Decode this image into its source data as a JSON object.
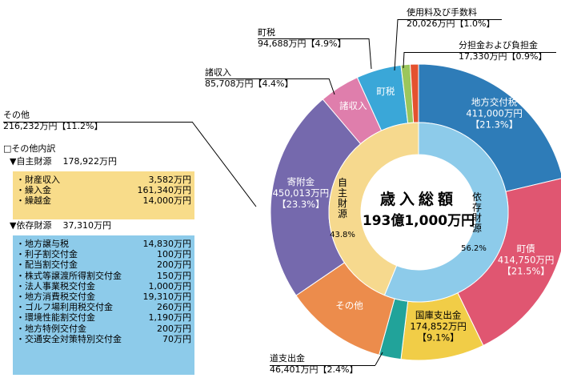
{
  "chart_data": {
    "type": "donut",
    "center_title": "歳入総額",
    "center_total": "193億1,000万円",
    "outer": [
      {
        "name": "地方交付税",
        "amount": "411,000万円",
        "percent": "【21.3%】",
        "value": 21.3,
        "color": "#2e7cb8",
        "label_color": "#ffffff"
      },
      {
        "name": "町債",
        "amount": "414,750万円",
        "percent": "【21.5%】",
        "value": 21.5,
        "color": "#e05671",
        "label_color": "#ffffff"
      },
      {
        "name": "国庫支出金",
        "amount": "174,852万円",
        "percent": "【9.1%】",
        "value": 9.1,
        "color": "#f1cd47",
        "label_color": "#000000"
      },
      {
        "name": "道支出金",
        "amount": "46,401万円",
        "percent": "【2.4%】",
        "value": 2.4,
        "color": "#21a39a",
        "label_color": "#000000"
      },
      {
        "name": "その他",
        "amount": "216,232万円",
        "percent": "【11.2%】",
        "value": 11.2,
        "color": "#ec8c4c",
        "label_color": "#ffffff"
      },
      {
        "name": "寄附金",
        "amount": "450,013万円",
        "percent": "【23.3%】",
        "value": 23.3,
        "color": "#7569ad",
        "label_color": "#ffffff"
      },
      {
        "name": "諸収入",
        "amount": "85,708万円",
        "percent": "【4.4%】",
        "value": 4.4,
        "color": "#df7eac",
        "label_color": "#ffffff"
      },
      {
        "name": "町税",
        "amount": "94,688万円",
        "percent": "【4.9%】",
        "value": 4.9,
        "color": "#3aa7d8",
        "label_color": "#ffffff"
      },
      {
        "name": "使用料及び手数料",
        "amount": "20,026万円",
        "percent": "【1.0%】",
        "value": 1.0,
        "color": "#9bc65c",
        "label_color": "#000000"
      },
      {
        "name": "分担金および負担金",
        "amount": "17,330万円",
        "percent": "【0.9%】",
        "value": 0.9,
        "color": "#e4522f",
        "label_color": "#000000"
      }
    ],
    "inner": [
      {
        "name": "依存財源",
        "percent": "56.2%",
        "value": 56.2,
        "color": "#8dcbea"
      },
      {
        "name": "自主財源",
        "percent": "43.8%",
        "value": 43.8,
        "color": "#f6d98e"
      }
    ]
  },
  "other_breakdown": {
    "title": "□その他内訳",
    "own": {
      "label": "▼自主財源",
      "total": "178,922万円",
      "items": [
        {
          "name": "・財産収入",
          "amount": "3,582万円"
        },
        {
          "name": "・繰入金",
          "amount": "161,340万円"
        },
        {
          "name": "・繰越金",
          "amount": "14,000万円"
        }
      ]
    },
    "dep": {
      "label": "▼依存財源",
      "total": "37,310万円",
      "items": [
        {
          "name": "・地方譲与税",
          "amount": "14,830万円"
        },
        {
          "name": "・利子割交付金",
          "amount": "100万円"
        },
        {
          "name": "・配当割交付金",
          "amount": "200万円"
        },
        {
          "name": "・株式等譲渡所得割交付金",
          "amount": "150万円"
        },
        {
          "name": "・法人事業税交付金",
          "amount": "1,000万円"
        },
        {
          "name": "・地方消費税交付金",
          "amount": "19,310万円"
        },
        {
          "name": "・ゴルフ場利用税交付金",
          "amount": "260万円"
        },
        {
          "name": "・環境性能割交付金",
          "amount": "1,190万円"
        },
        {
          "name": "・地方特例交付金",
          "amount": "200万円"
        },
        {
          "name": "・交通安全対策特別交付金",
          "amount": "70万円"
        }
      ]
    },
    "box_colors": {
      "own": "#f8dc8a",
      "dep": "#8dcbea"
    }
  }
}
